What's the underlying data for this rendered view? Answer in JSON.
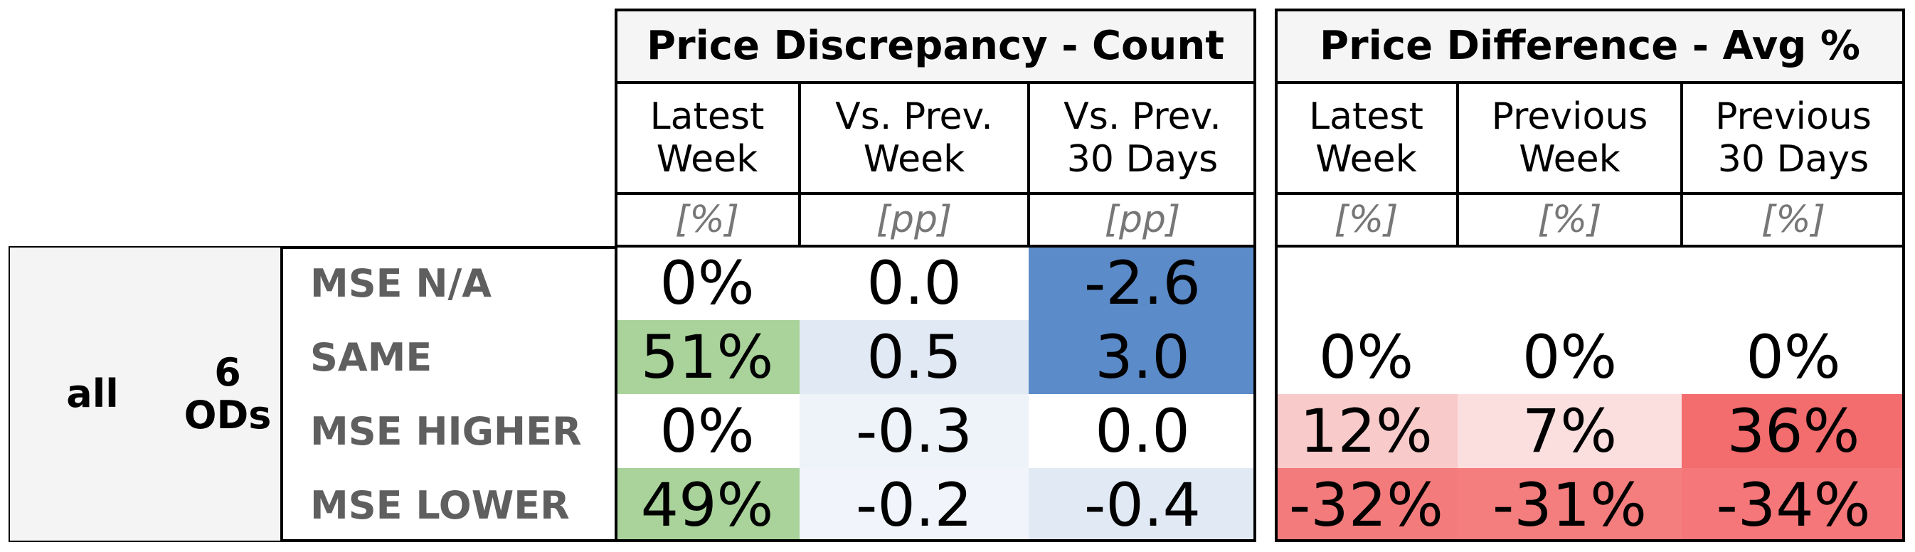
{
  "chart_data": {
    "type": "table",
    "row_group": {
      "label": "all",
      "sublabel": "6\nODs"
    },
    "rows": [
      "MSE N/A",
      "SAME",
      "MSE HIGHER",
      "MSE LOWER"
    ],
    "groups": [
      {
        "title": "Price Discrepancy - Count",
        "columns": [
          {
            "label": "Latest\nWeek",
            "unit": "[%]"
          },
          {
            "label": "Vs. Prev.\nWeek",
            "unit": "[pp]"
          },
          {
            "label": "Vs. Prev.\n30 Days",
            "unit": "[pp]"
          }
        ],
        "values": [
          [
            "0%",
            "0.0",
            "-2.6"
          ],
          [
            "51%",
            "0.5",
            "3.0"
          ],
          [
            "0%",
            "-0.3",
            "0.0"
          ],
          [
            "49%",
            "-0.2",
            "-0.4"
          ]
        ],
        "colors": [
          [
            "#ffffff",
            "#ffffff",
            "#5b8bc9"
          ],
          [
            "#a9d39a",
            "#e1e9f4",
            "#5b8bc9"
          ],
          [
            "#ffffff",
            "#eef2f9",
            "#ffffff"
          ],
          [
            "#a9d39a",
            "#f1f4fa",
            "#e1e9f4"
          ]
        ]
      },
      {
        "title": "Price Difference - Avg %",
        "columns": [
          {
            "label": "Latest\nWeek",
            "unit": "[%]"
          },
          {
            "label": "Previous\nWeek",
            "unit": "[%]"
          },
          {
            "label": "Previous\n30 Days",
            "unit": "[%]"
          }
        ],
        "values": [
          [
            "",
            "",
            ""
          ],
          [
            "0%",
            "0%",
            "0%"
          ],
          [
            "12%",
            "7%",
            "36%"
          ],
          [
            "-32%",
            "-31%",
            "-34%"
          ]
        ],
        "colors": [
          [
            "#ffffff",
            "#ffffff",
            "#ffffff"
          ],
          [
            "#ffffff",
            "#ffffff",
            "#ffffff"
          ],
          [
            "#f9caca",
            "#fbdfdf",
            "#f36c6e"
          ],
          [
            "#f47b7c",
            "#f47d7e",
            "#f57779"
          ]
        ]
      }
    ]
  }
}
